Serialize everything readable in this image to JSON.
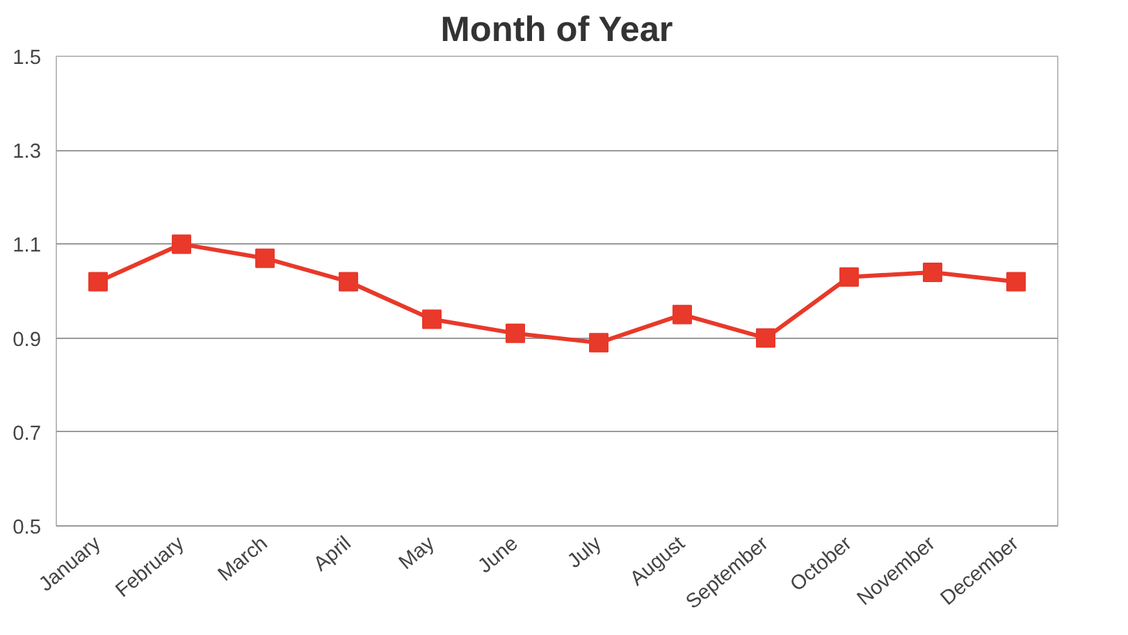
{
  "chart_data": {
    "type": "line",
    "title": "Month of Year",
    "categories": [
      "January",
      "February",
      "March",
      "April",
      "May",
      "June",
      "July",
      "August",
      "September",
      "October",
      "November",
      "December"
    ],
    "series": [
      {
        "color": "#e8392a",
        "values": [
          1.02,
          1.1,
          1.07,
          1.02,
          0.94,
          0.91,
          0.89,
          0.95,
          0.9,
          1.03,
          1.04,
          1.02
        ]
      }
    ],
    "ylim": [
      0.5,
      1.5
    ],
    "yticks": [
      0.5,
      0.7,
      0.9,
      1.1,
      1.3,
      1.5
    ],
    "grid": "y",
    "marker": "square",
    "line_style": "solid"
  }
}
